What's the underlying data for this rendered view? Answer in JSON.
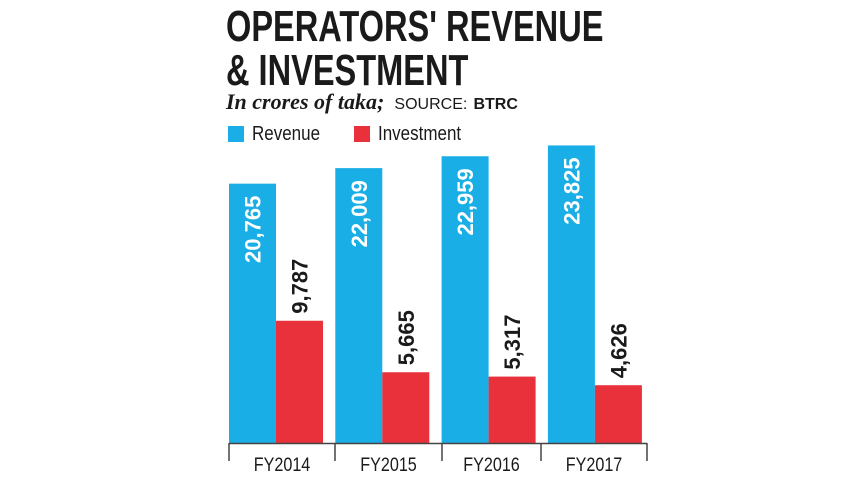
{
  "header": {
    "title_line1": "OPERATORS' REVENUE",
    "title_line2": "& INVESTMENT",
    "units": "In crores of taka;",
    "source_label": "SOURCE:",
    "source_value": "BTRC"
  },
  "colors": {
    "revenue": "#1aaee6",
    "investment": "#e8313a",
    "text": "#1a1a1a",
    "axis": "#444444"
  },
  "chart_data": {
    "type": "bar",
    "title": "OPERATORS' REVENUE & INVESTMENT",
    "subtitle": "In crores of taka; SOURCE: BTRC",
    "categories": [
      "FY2014",
      "FY2015",
      "FY2016",
      "FY2017"
    ],
    "series": [
      {
        "name": "Revenue",
        "values": [
          20765,
          22009,
          22959,
          23825
        ],
        "labels": [
          "20,765",
          "22,009",
          "22,959",
          "23,825"
        ]
      },
      {
        "name": "Investment",
        "values": [
          9787,
          5665,
          5317,
          4626
        ],
        "labels": [
          "9,787",
          "5,665",
          "5,317",
          "4,626"
        ]
      }
    ],
    "xlabel": "",
    "ylabel": "",
    "ylim": [
      0,
      24500
    ],
    "grid": false,
    "legend": "top-left"
  }
}
